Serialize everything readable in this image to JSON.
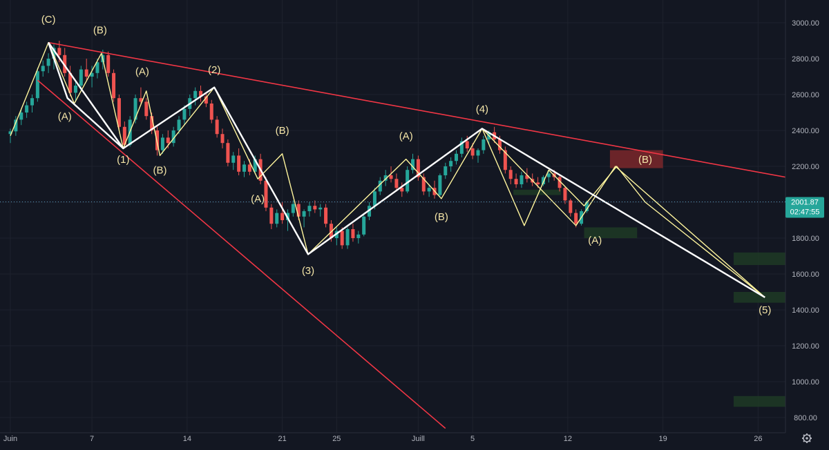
{
  "chart_data": {
    "type": "candlestick",
    "y_axis": {
      "ticks": [
        3000,
        2800,
        2600,
        2400,
        2200,
        2000,
        1800,
        1600,
        1400,
        1200,
        1000,
        800
      ],
      "labels": [
        "3000.00",
        "2800.00",
        "2600.00",
        "2400.00",
        "2200.00",
        "2000.00",
        "1800.00",
        "1600.00",
        "1400.00",
        "1200.00",
        "1000.00",
        "800.00"
      ],
      "range": [
        720,
        3120
      ]
    },
    "x_axis": {
      "labels": [
        "Juin",
        "7",
        "14",
        "21",
        "25",
        "Juill",
        "5",
        "12",
        "19",
        "26"
      ],
      "day_index": [
        0,
        6,
        13,
        20,
        24,
        30,
        34,
        41,
        48,
        55
      ],
      "range_days": [
        0,
        57
      ]
    },
    "current_price": {
      "value": "2001.87",
      "countdown": "02:47:55",
      "level": 2001.87
    },
    "colors": {
      "up": "#26a69a",
      "down": "#ef5350",
      "background": "#131722",
      "trendline": "#f23645",
      "white_wave": "#ffffff",
      "yellow_wave": "#fff59d",
      "label": "#f5e6a8",
      "zone_green": "#1e3a25",
      "zone_red": "#8a2a2c",
      "grid": "#1e222d"
    },
    "candles_4h": [
      [
        0,
        2380,
        2410,
        2330,
        2395
      ],
      [
        0.4,
        2395,
        2480,
        2370,
        2460
      ],
      [
        0.8,
        2460,
        2520,
        2430,
        2500
      ],
      [
        1.2,
        2500,
        2560,
        2470,
        2540
      ],
      [
        1.6,
        2540,
        2600,
        2500,
        2580
      ],
      [
        2.0,
        2580,
        2750,
        2560,
        2730
      ],
      [
        2.4,
        2730,
        2790,
        2700,
        2760
      ],
      [
        2.8,
        2760,
        2830,
        2720,
        2800
      ],
      [
        3.2,
        2800,
        2880,
        2740,
        2860
      ],
      [
        3.6,
        2860,
        2900,
        2780,
        2820
      ],
      [
        4.0,
        2820,
        2860,
        2700,
        2720
      ],
      [
        4.4,
        2720,
        2760,
        2590,
        2610
      ],
      [
        4.8,
        2610,
        2680,
        2560,
        2650
      ],
      [
        5.2,
        2650,
        2760,
        2620,
        2740
      ],
      [
        5.6,
        2740,
        2800,
        2680,
        2700
      ],
      [
        6.0,
        2700,
        2760,
        2640,
        2720
      ],
      [
        6.4,
        2720,
        2800,
        2690,
        2780
      ],
      [
        6.8,
        2780,
        2850,
        2740,
        2820
      ],
      [
        7.2,
        2820,
        2840,
        2700,
        2720
      ],
      [
        7.6,
        2720,
        2740,
        2560,
        2580
      ],
      [
        8.0,
        2580,
        2600,
        2400,
        2420
      ],
      [
        8.4,
        2420,
        2450,
        2300,
        2320
      ],
      [
        8.8,
        2320,
        2480,
        2310,
        2460
      ],
      [
        9.2,
        2460,
        2600,
        2440,
        2580
      ],
      [
        9.6,
        2580,
        2640,
        2540,
        2560
      ],
      [
        10.0,
        2560,
        2580,
        2460,
        2480
      ],
      [
        10.4,
        2480,
        2500,
        2380,
        2400
      ],
      [
        10.8,
        2400,
        2420,
        2260,
        2290
      ],
      [
        11.2,
        2290,
        2380,
        2270,
        2360
      ],
      [
        11.6,
        2360,
        2400,
        2300,
        2330
      ],
      [
        12.0,
        2330,
        2420,
        2310,
        2400
      ],
      [
        12.4,
        2400,
        2480,
        2380,
        2460
      ],
      [
        12.8,
        2460,
        2540,
        2430,
        2520
      ],
      [
        13.2,
        2520,
        2600,
        2480,
        2580
      ],
      [
        13.6,
        2580,
        2640,
        2540,
        2620
      ],
      [
        14.0,
        2620,
        2650,
        2560,
        2590
      ],
      [
        14.4,
        2590,
        2610,
        2530,
        2550
      ],
      [
        14.8,
        2550,
        2570,
        2440,
        2460
      ],
      [
        15.2,
        2460,
        2480,
        2360,
        2380
      ],
      [
        15.6,
        2380,
        2410,
        2300,
        2330
      ],
      [
        16.0,
        2330,
        2350,
        2200,
        2220
      ],
      [
        16.4,
        2220,
        2280,
        2180,
        2260
      ],
      [
        16.8,
        2260,
        2300,
        2150,
        2170
      ],
      [
        17.2,
        2170,
        2230,
        2140,
        2210
      ],
      [
        17.6,
        2210,
        2240,
        2150,
        2170
      ],
      [
        18.0,
        2170,
        2260,
        2160,
        2240
      ],
      [
        18.4,
        2240,
        2270,
        2100,
        2120
      ],
      [
        18.8,
        2120,
        2140,
        1950,
        1970
      ],
      [
        19.2,
        1970,
        1990,
        1850,
        1880
      ],
      [
        19.6,
        1880,
        1960,
        1860,
        1940
      ],
      [
        20.0,
        1940,
        2000,
        1880,
        1900
      ],
      [
        20.4,
        1900,
        1960,
        1840,
        1940
      ],
      [
        20.8,
        1940,
        2010,
        1920,
        1990
      ],
      [
        21.2,
        1990,
        2010,
        1900,
        1920
      ],
      [
        21.6,
        1920,
        1960,
        1860,
        1950
      ],
      [
        22.0,
        1950,
        2000,
        1920,
        1980
      ],
      [
        22.4,
        1980,
        2010,
        1940,
        1960
      ],
      [
        22.8,
        1960,
        1990,
        1920,
        1970
      ],
      [
        23.2,
        1970,
        1990,
        1860,
        1880
      ],
      [
        23.6,
        1880,
        1900,
        1780,
        1800
      ],
      [
        24.0,
        1800,
        1860,
        1760,
        1840
      ],
      [
        24.4,
        1840,
        1860,
        1740,
        1760
      ],
      [
        24.8,
        1760,
        1860,
        1740,
        1850
      ],
      [
        25.2,
        1850,
        1880,
        1780,
        1800
      ],
      [
        25.6,
        1800,
        1840,
        1770,
        1820
      ],
      [
        26.0,
        1820,
        1940,
        1810,
        1920
      ],
      [
        26.4,
        1920,
        2000,
        1900,
        1980
      ],
      [
        26.8,
        1980,
        2080,
        1960,
        2060
      ],
      [
        27.2,
        2060,
        2140,
        2040,
        2120
      ],
      [
        27.6,
        2120,
        2180,
        2090,
        2150
      ],
      [
        28.0,
        2150,
        2200,
        2110,
        2130
      ],
      [
        28.4,
        2130,
        2160,
        2060,
        2080
      ],
      [
        28.8,
        2080,
        2110,
        2030,
        2060
      ],
      [
        29.2,
        2060,
        2200,
        2050,
        2180
      ],
      [
        29.6,
        2180,
        2270,
        2160,
        2240
      ],
      [
        30.0,
        2240,
        2260,
        2120,
        2140
      ],
      [
        30.4,
        2140,
        2160,
        2040,
        2060
      ],
      [
        30.8,
        2060,
        2100,
        2030,
        2080
      ],
      [
        31.2,
        2080,
        2120,
        2020,
        2040
      ],
      [
        31.6,
        2040,
        2160,
        2030,
        2150
      ],
      [
        32.0,
        2150,
        2220,
        2130,
        2200
      ],
      [
        32.4,
        2200,
        2250,
        2170,
        2230
      ],
      [
        32.8,
        2230,
        2290,
        2210,
        2270
      ],
      [
        33.2,
        2270,
        2360,
        2250,
        2340
      ],
      [
        33.6,
        2340,
        2370,
        2280,
        2300
      ],
      [
        34.0,
        2300,
        2330,
        2240,
        2260
      ],
      [
        34.4,
        2260,
        2300,
        2220,
        2290
      ],
      [
        34.8,
        2290,
        2370,
        2270,
        2350
      ],
      [
        35.2,
        2350,
        2400,
        2320,
        2390
      ],
      [
        35.6,
        2390,
        2420,
        2330,
        2350
      ],
      [
        36.0,
        2350,
        2370,
        2270,
        2290
      ],
      [
        36.4,
        2290,
        2310,
        2160,
        2180
      ],
      [
        36.8,
        2180,
        2200,
        2100,
        2130
      ],
      [
        37.2,
        2130,
        2160,
        2080,
        2100
      ],
      [
        37.6,
        2100,
        2170,
        2080,
        2150
      ],
      [
        38.0,
        2150,
        2190,
        2110,
        2130
      ],
      [
        38.4,
        2130,
        2160,
        2090,
        2110
      ],
      [
        38.8,
        2110,
        2140,
        2080,
        2100
      ],
      [
        39.2,
        2100,
        2150,
        2090,
        2140
      ],
      [
        39.6,
        2140,
        2180,
        2110,
        2160
      ],
      [
        40.0,
        2160,
        2180,
        2120,
        2140
      ],
      [
        40.4,
        2140,
        2150,
        2060,
        2080
      ],
      [
        40.8,
        2080,
        2090,
        1990,
        2010
      ],
      [
        41.2,
        2010,
        2020,
        1920,
        1940
      ],
      [
        41.6,
        1940,
        1960,
        1860,
        1880
      ],
      [
        42.0,
        1880,
        1960,
        1870,
        1950
      ],
      [
        42.4,
        1950,
        2010,
        1940,
        2000
      ]
    ],
    "trendlines_upper": [
      [
        2.8,
        2890
      ],
      [
        57,
        2140
      ]
    ],
    "trendlines_lower": [
      [
        2.0,
        2680
      ],
      [
        32.0,
        740
      ]
    ],
    "white_wave_1": [
      [
        2.8,
        2890
      ],
      [
        8.3,
        2300
      ],
      [
        15.0,
        2640
      ],
      [
        21.9,
        1710
      ],
      [
        34.7,
        2410
      ],
      [
        55.5,
        1470
      ]
    ],
    "white_wave_2": [
      [
        2.8,
        2890
      ],
      [
        4.2,
        2580
      ],
      [
        8.3,
        2300
      ]
    ],
    "yellow_wave_1": [
      [
        0,
        2370
      ],
      [
        2.8,
        2890
      ],
      [
        4.7,
        2550
      ],
      [
        6.7,
        2830
      ],
      [
        8.3,
        2300
      ],
      [
        10.0,
        2620
      ],
      [
        11.0,
        2260
      ],
      [
        15.0,
        2640
      ],
      [
        18.2,
        2130
      ],
      [
        20.0,
        2270
      ],
      [
        21.9,
        1710
      ],
      [
        29.1,
        2240
      ],
      [
        31.7,
        2020
      ],
      [
        34.7,
        2410
      ],
      [
        37.8,
        1870
      ],
      [
        39.6,
        2180
      ]
    ],
    "yellow_wave_2": [
      [
        39.6,
        2180
      ],
      [
        42.2,
        1980
      ],
      [
        44.6,
        2200
      ],
      [
        46.7,
        2000
      ],
      [
        55.5,
        1470
      ]
    ],
    "yellow_wave_3": [
      [
        34.7,
        2410
      ],
      [
        41.6,
        1870
      ],
      [
        44.5,
        2200
      ],
      [
        55.5,
        1470
      ]
    ],
    "wave_labels": [
      {
        "text": "(C)",
        "day": 2.8,
        "price": 3000
      },
      {
        "text": "(B)",
        "day": 6.6,
        "price": 2940
      },
      {
        "text": "(A)",
        "day": 4.0,
        "price": 2460
      },
      {
        "text": "(A)",
        "day": 9.7,
        "price": 2710
      },
      {
        "text": "(1)",
        "day": 8.3,
        "price": 2220
      },
      {
        "text": "(B)",
        "day": 11.0,
        "price": 2160
      },
      {
        "text": "(2)",
        "day": 15.0,
        "price": 2720
      },
      {
        "text": "(A)",
        "day": 18.2,
        "price": 2000
      },
      {
        "text": "(B)",
        "day": 20.0,
        "price": 2380
      },
      {
        "text": "(3)",
        "day": 21.9,
        "price": 1600
      },
      {
        "text": "(A)",
        "day": 29.1,
        "price": 2350
      },
      {
        "text": "(B)",
        "day": 31.7,
        "price": 1900
      },
      {
        "text": "(4)",
        "day": 34.7,
        "price": 2500
      },
      {
        "text": "(B)",
        "day": 46.7,
        "price": 2220
      },
      {
        "text": "(A)",
        "day": 43.0,
        "price": 1770
      },
      {
        "text": "(5)",
        "day": 55.5,
        "price": 1380
      }
    ],
    "zones": [
      {
        "color": "green",
        "day_from": 37.0,
        "day_to": 40.5,
        "price_from": 2040,
        "price_to": 2070
      },
      {
        "color": "green",
        "day_from": 42.2,
        "day_to": 46.1,
        "price_from": 1800,
        "price_to": 1860
      },
      {
        "color": "red",
        "day_from": 44.1,
        "day_to": 48.0,
        "price_from": 2190,
        "price_to": 2290
      },
      {
        "color": "green",
        "day_from": 53.2,
        "day_to": 57.0,
        "price_from": 1650,
        "price_to": 1720
      },
      {
        "color": "green",
        "day_from": 53.2,
        "day_to": 57.0,
        "price_from": 1440,
        "price_to": 1500
      },
      {
        "color": "green",
        "day_from": 53.2,
        "day_to": 57.0,
        "price_from": 860,
        "price_to": 920
      }
    ]
  }
}
